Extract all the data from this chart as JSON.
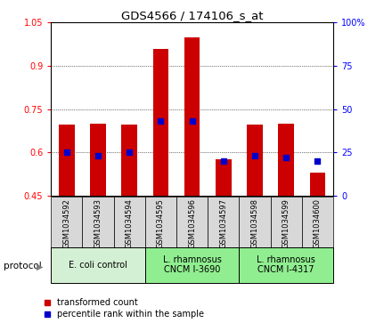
{
  "title": "GDS4566 / 174106_s_at",
  "samples": [
    "GSM1034592",
    "GSM1034593",
    "GSM1034594",
    "GSM1034595",
    "GSM1034596",
    "GSM1034597",
    "GSM1034598",
    "GSM1034599",
    "GSM1034600"
  ],
  "transformed_count": [
    0.695,
    0.7,
    0.695,
    0.96,
    1.0,
    0.575,
    0.695,
    0.7,
    0.53
  ],
  "percentile_rank": [
    25,
    23,
    25,
    43,
    43,
    20,
    23,
    22,
    20
  ],
  "bar_bottom": 0.45,
  "bar_color": "#cc0000",
  "blue_color": "#0000cc",
  "ylim_left": [
    0.45,
    1.05
  ],
  "ylim_right": [
    0,
    100
  ],
  "yticks_left": [
    0.45,
    0.6,
    0.75,
    0.9,
    1.05
  ],
  "ytick_labels_left": [
    "0.45",
    "0.6",
    "0.75",
    "0.9",
    "1.05"
  ],
  "yticks_right": [
    0,
    25,
    50,
    75,
    100
  ],
  "ytick_labels_right": [
    "0",
    "25",
    "50",
    "75",
    "100%"
  ],
  "groups": [
    {
      "label": "E. coli control",
      "start": 0,
      "end": 3,
      "color": "#d4f0d4"
    },
    {
      "label": "L. rhamnosus\nCNCM I-3690",
      "start": 3,
      "end": 6,
      "color": "#90ee90"
    },
    {
      "label": "L. rhamnosus\nCNCM I-4317",
      "start": 6,
      "end": 9,
      "color": "#90ee90"
    }
  ],
  "legend_red": "transformed count",
  "legend_blue": "percentile rank within the sample",
  "protocol_label": "protocol",
  "bg_color": "#d8d8d8"
}
